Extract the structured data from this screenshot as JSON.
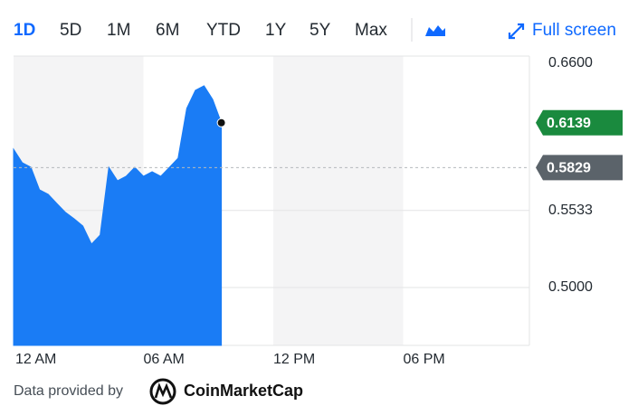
{
  "toolbar": {
    "ranges": [
      "1D",
      "5D",
      "1M",
      "6M",
      "YTD",
      "1Y",
      "5Y",
      "Max"
    ],
    "active_range": "1D",
    "full_screen": "Full screen"
  },
  "chart_data": {
    "type": "area",
    "x": [
      0,
      0.4,
      0.8,
      1.2,
      1.6,
      2.0,
      2.4,
      2.8,
      3.2,
      3.6,
      4.0,
      4.4,
      4.8,
      5.2,
      5.6,
      6.0,
      6.4,
      6.8,
      7.2,
      7.6,
      8.0,
      8.4,
      8.8,
      9.2,
      9.6
    ],
    "series": [
      {
        "color": "#1a7cf5",
        "values": [
          0.5956,
          0.5863,
          0.5831,
          0.5675,
          0.5644,
          0.5581,
          0.5519,
          0.5475,
          0.5425,
          0.53,
          0.5363,
          0.5831,
          0.5738,
          0.5769,
          0.5831,
          0.5769,
          0.58,
          0.5769,
          0.5831,
          0.5894,
          0.6238,
          0.6363,
          0.6394,
          0.63,
          0.6139
        ]
      }
    ],
    "xlim": [
      0,
      24
    ],
    "xticks": [
      {
        "value": 0,
        "label": "12 AM"
      },
      {
        "value": 6,
        "label": "06 AM"
      },
      {
        "value": 12,
        "label": "12 PM"
      },
      {
        "value": 18,
        "label": "06 PM"
      }
    ],
    "ylim": [
      0.46,
      0.66
    ],
    "yticks": [
      {
        "value": 0.5,
        "label": "0.5000"
      },
      0.5533,
      {
        "value": 0.66,
        "label": "0.6600"
      }
    ],
    "grid": true,
    "last_price": 0.6139,
    "last_price_color": "#1a8a3e",
    "previous_close": 0.5829,
    "previous_close_color": "#5b636a"
  },
  "footer": {
    "provided_by": "Data provided by",
    "provider": "CoinMarketCap"
  }
}
